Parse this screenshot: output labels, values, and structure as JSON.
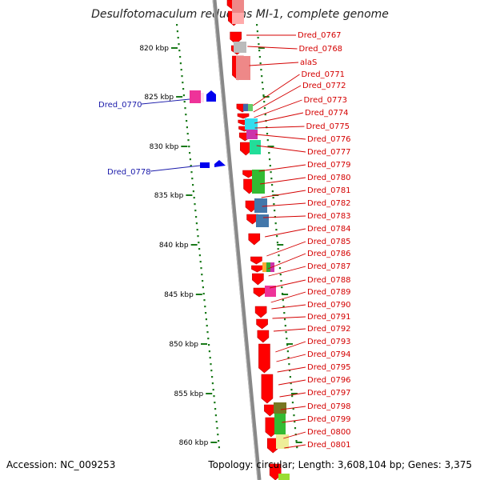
{
  "title": "Desulfotomaculum reducens MI-1, complete genome",
  "footer": {
    "accession": "Accession: NC_009253",
    "summary": "Topology: circular; Length: 3,608,104 bp; Genes: 3,375"
  },
  "scale": {
    "unit": "kbp",
    "ticks": [
      {
        "label": "820 kbp"
      },
      {
        "label": "825 kbp"
      },
      {
        "label": "830 kbp"
      },
      {
        "label": "835 kbp"
      },
      {
        "label": "840 kbp"
      },
      {
        "label": "845 kbp"
      },
      {
        "label": "850 kbp"
      },
      {
        "label": "855 kbp"
      },
      {
        "label": "860 kbp"
      }
    ]
  },
  "labels_left": [
    "Dred_0770",
    "Dred_0778"
  ],
  "labels_right": [
    "Dred_0767",
    "Dred_0768",
    "alaS",
    "Dred_0771",
    "Dred_0772",
    "Dred_0773",
    "Dred_0774",
    "Dred_0775",
    "Dred_0776",
    "Dred_0777",
    "Dred_0779",
    "Dred_0780",
    "Dred_0781",
    "Dred_0782",
    "Dred_0783",
    "Dred_0784",
    "Dred_0785",
    "Dred_0786",
    "Dred_0787",
    "Dred_0788",
    "Dred_0789",
    "Dred_0790",
    "Dred_0791",
    "Dred_0792",
    "Dred_0793",
    "Dred_0794",
    "Dred_0795",
    "Dred_0796",
    "Dred_0797",
    "Dred_0798",
    "Dred_0799",
    "Dred_0800",
    "Dred_0801"
  ],
  "colors": {
    "forward_gene": "#ff0000",
    "reverse_gene": "#0000ee",
    "backbone": "#888888",
    "tick": "#1a7a1a",
    "label_red": "#d40000",
    "label_blue": "#1a1aaa"
  }
}
